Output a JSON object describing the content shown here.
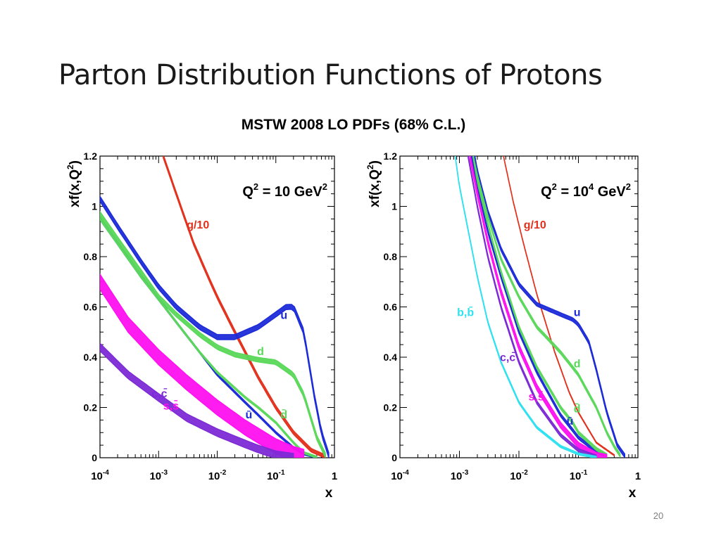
{
  "slide": {
    "title": "Parton Distribution Functions of Protons",
    "page_number": "20"
  },
  "figure_title": "MSTW 2008 LO PDFs (68% C.L.)",
  "chart_data": [
    {
      "type": "line",
      "annotation": {
        "base": "Q",
        "sup1": "2",
        "mid": " = 10 GeV",
        "sup2": "2"
      },
      "xlabel": "x",
      "ylabel": {
        "base": "xf(x,Q",
        "sup": "2",
        "tail": ")"
      },
      "xscale": "log",
      "xlim": [
        0.0001,
        1
      ],
      "ylim": [
        0,
        1.2
      ],
      "x_ticks": [
        {
          "value": 0.0001,
          "base": "10",
          "exp": "-4"
        },
        {
          "value": 0.001,
          "base": "10",
          "exp": "-3"
        },
        {
          "value": 0.01,
          "base": "10",
          "exp": "-2"
        },
        {
          "value": 0.1,
          "base": "10",
          "exp": "-1"
        },
        {
          "value": 1,
          "base": "1",
          "exp": ""
        }
      ],
      "y_ticks": [
        "0",
        "0.2",
        "0.4",
        "0.6",
        "0.8",
        "1",
        "1.2"
      ],
      "series": [
        {
          "name": "g/10",
          "color": "#e3301c",
          "band": 0.014,
          "x": [
            0.0012,
            0.002,
            0.004,
            0.007,
            0.01,
            0.02,
            0.05,
            0.1,
            0.2,
            0.4,
            0.7
          ],
          "y": [
            1.2,
            1.05,
            0.85,
            0.72,
            0.64,
            0.5,
            0.32,
            0.2,
            0.1,
            0.03,
            0.005
          ]
        },
        {
          "name": "u",
          "color": "#1c2bd8",
          "band": 0.02,
          "x": [
            0.0001,
            0.0002,
            0.0005,
            0.001,
            0.002,
            0.005,
            0.01,
            0.02,
            0.05,
            0.1,
            0.15,
            0.2,
            0.3,
            0.45,
            0.6,
            0.8
          ],
          "y": [
            1.03,
            0.92,
            0.78,
            0.68,
            0.6,
            0.52,
            0.48,
            0.48,
            0.52,
            0.57,
            0.6,
            0.6,
            0.5,
            0.25,
            0.1,
            0.01
          ]
        },
        {
          "name": "d",
          "color": "#5ad85a",
          "band": 0.018,
          "x": [
            0.0001,
            0.0002,
            0.0005,
            0.001,
            0.002,
            0.005,
            0.01,
            0.02,
            0.05,
            0.1,
            0.2,
            0.3,
            0.5,
            0.7
          ],
          "y": [
            0.97,
            0.87,
            0.74,
            0.64,
            0.57,
            0.49,
            0.44,
            0.41,
            0.39,
            0.38,
            0.33,
            0.25,
            0.08,
            0.01
          ]
        },
        {
          "name": "ū",
          "color": "#1c2bd8",
          "band": 0.008,
          "x": [
            0.0001,
            0.0005,
            0.001,
            0.005,
            0.01,
            0.03,
            0.05,
            0.1,
            0.2,
            0.3,
            0.5
          ],
          "y": [
            0.95,
            0.72,
            0.63,
            0.42,
            0.33,
            0.22,
            0.17,
            0.1,
            0.04,
            0.015,
            0.002
          ]
        },
        {
          "name": "d̄",
          "color": "#5ad85a",
          "band": 0.008,
          "x": [
            0.0001,
            0.0005,
            0.001,
            0.005,
            0.01,
            0.03,
            0.05,
            0.1,
            0.2,
            0.3,
            0.5
          ],
          "y": [
            0.95,
            0.72,
            0.63,
            0.42,
            0.34,
            0.24,
            0.2,
            0.14,
            0.06,
            0.02,
            0.002
          ]
        },
        {
          "name": "s,s̄",
          "color": "#ff10ef",
          "band": 0.06,
          "x": [
            0.0001,
            0.0003,
            0.001,
            0.003,
            0.01,
            0.03,
            0.1,
            0.2,
            0.3
          ],
          "y": [
            0.7,
            0.53,
            0.4,
            0.3,
            0.2,
            0.12,
            0.045,
            0.015,
            0.003
          ]
        },
        {
          "name": "c,c̄",
          "color": "#7d2ad6",
          "band": 0.03,
          "x": [
            0.0001,
            0.0003,
            0.001,
            0.003,
            0.01,
            0.03,
            0.05,
            0.1,
            0.2
          ],
          "y": [
            0.44,
            0.33,
            0.24,
            0.16,
            0.1,
            0.055,
            0.035,
            0.012,
            0.002
          ]
        }
      ]
    },
    {
      "type": "line",
      "annotation": {
        "base": "Q",
        "sup1": "2",
        "mid": " = 10",
        "sup_mid": "4",
        "tail": " GeV",
        "sup2": "2"
      },
      "xlabel": "x",
      "ylabel": {
        "base": "xf(x,Q",
        "sup": "2",
        "tail": ")"
      },
      "xscale": "log",
      "xlim": [
        0.0001,
        1
      ],
      "ylim": [
        0,
        1.2
      ],
      "x_ticks": [
        {
          "value": 0.0001,
          "base": "10",
          "exp": "-4"
        },
        {
          "value": 0.001,
          "base": "10",
          "exp": "-3"
        },
        {
          "value": 0.01,
          "base": "10",
          "exp": "-2"
        },
        {
          "value": 0.1,
          "base": "10",
          "exp": "-1"
        },
        {
          "value": 1,
          "base": "1",
          "exp": ""
        }
      ],
      "y_ticks": [
        "0",
        "0.2",
        "0.4",
        "0.6",
        "0.8",
        "1",
        "1.2"
      ],
      "series": [
        {
          "name": "g/10",
          "color": "#e3301c",
          "band": 0.004,
          "x": [
            0.0055,
            0.008,
            0.012,
            0.02,
            0.04,
            0.07,
            0.1,
            0.2,
            0.4
          ],
          "y": [
            1.2,
            1.02,
            0.85,
            0.65,
            0.42,
            0.26,
            0.18,
            0.06,
            0.01
          ]
        },
        {
          "name": "u",
          "color": "#1c2bd8",
          "band": 0.014,
          "x": [
            0.0018,
            0.002,
            0.003,
            0.005,
            0.01,
            0.02,
            0.05,
            0.08,
            0.1,
            0.15,
            0.2,
            0.3,
            0.45,
            0.6
          ],
          "y": [
            1.2,
            1.14,
            0.98,
            0.83,
            0.69,
            0.61,
            0.57,
            0.55,
            0.53,
            0.46,
            0.35,
            0.18,
            0.05,
            0.008
          ]
        },
        {
          "name": "d",
          "color": "#5ad85a",
          "band": 0.012,
          "x": [
            0.0017,
            0.002,
            0.003,
            0.005,
            0.01,
            0.02,
            0.05,
            0.1,
            0.2,
            0.3,
            0.4,
            0.5
          ],
          "y": [
            1.2,
            1.12,
            0.96,
            0.79,
            0.64,
            0.52,
            0.42,
            0.33,
            0.2,
            0.1,
            0.045,
            0.01
          ]
        },
        {
          "name": "ū",
          "color": "#1c2bd8",
          "band": 0.012,
          "x": [
            0.0016,
            0.002,
            0.003,
            0.005,
            0.01,
            0.02,
            0.05,
            0.08,
            0.1,
            0.2,
            0.3
          ],
          "y": [
            1.2,
            1.08,
            0.9,
            0.72,
            0.5,
            0.34,
            0.17,
            0.11,
            0.08,
            0.025,
            0.008
          ]
        },
        {
          "name": "d̄",
          "color": "#5ad85a",
          "band": 0.012,
          "x": [
            0.0017,
            0.002,
            0.003,
            0.005,
            0.01,
            0.02,
            0.05,
            0.08,
            0.1,
            0.2,
            0.3
          ],
          "y": [
            1.2,
            1.1,
            0.93,
            0.74,
            0.52,
            0.36,
            0.2,
            0.14,
            0.1,
            0.035,
            0.01
          ]
        },
        {
          "name": "s,s̄",
          "color": "#ff10ef",
          "band": 0.022,
          "x": [
            0.0015,
            0.002,
            0.003,
            0.005,
            0.01,
            0.02,
            0.05,
            0.1,
            0.2,
            0.3
          ],
          "y": [
            1.2,
            1.05,
            0.86,
            0.66,
            0.44,
            0.28,
            0.13,
            0.05,
            0.01,
            0.002
          ]
        },
        {
          "name": "c,c̄",
          "color": "#7d2ad6",
          "band": 0.012,
          "x": [
            0.0014,
            0.002,
            0.003,
            0.005,
            0.01,
            0.02,
            0.05,
            0.1,
            0.2
          ],
          "y": [
            1.2,
            1.0,
            0.8,
            0.6,
            0.38,
            0.22,
            0.09,
            0.03,
            0.005
          ]
        },
        {
          "name": "b,b̄",
          "color": "#2de1f0",
          "band": 0.008,
          "x": [
            0.00085,
            0.001,
            0.002,
            0.003,
            0.005,
            0.01,
            0.02,
            0.05,
            0.1,
            0.2
          ],
          "y": [
            1.2,
            1.08,
            0.72,
            0.54,
            0.38,
            0.22,
            0.12,
            0.045,
            0.015,
            0.002
          ]
        }
      ]
    }
  ]
}
